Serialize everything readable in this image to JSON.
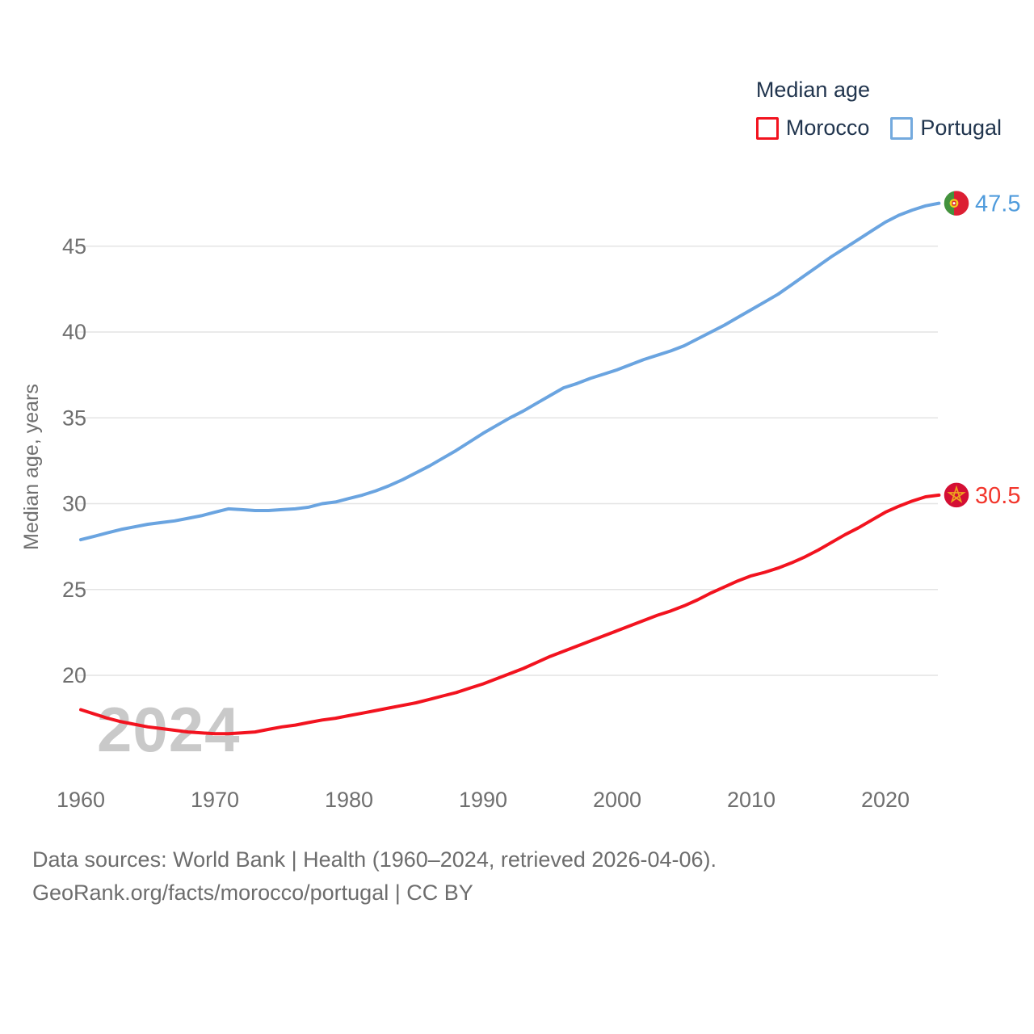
{
  "legend": {
    "title": "Median age",
    "items": [
      {
        "label": "Morocco",
        "color": "#f2131f"
      },
      {
        "label": "Portugal",
        "color": "#74aade"
      }
    ]
  },
  "watermark": "2024",
  "footer": {
    "line1": "Data sources: World Bank | Health (1960–2024, retrieved 2026-04-06).",
    "line2": "GeoRank.org/facts/morocco/portugal | CC BY"
  },
  "colors": {
    "morocco_line": "#f2131f",
    "portugal_line": "#6aa4e0",
    "morocco_value_label": "#f2362c",
    "portugal_value_label": "#4f9bdc",
    "legend_text": "#21354e",
    "axis_text": "#6f6f6f",
    "gridline": "#e4e4e4",
    "watermark": "#c9c9c9",
    "footer_text": "#6d6d6d",
    "morocco_flag_red": "#d40f34",
    "morocco_flag_star": "#efa51e",
    "portugal_flag_green": "#43923d",
    "portugal_flag_red": "#dc1f33",
    "portugal_flag_gold": "#f3cf1c"
  },
  "chart_data": {
    "type": "line",
    "title": "Median age",
    "ylabel": "Median age, years",
    "xlabel": "",
    "grid": "horizontal",
    "legend_position": "top-right",
    "x_ticks": [
      1960,
      1970,
      1980,
      1990,
      2000,
      2010,
      2020
    ],
    "y_ticks": [
      20,
      25,
      30,
      35,
      40,
      45
    ],
    "ylim": [
      16,
      48.5
    ],
    "xlim": [
      1960,
      2024
    ],
    "x": [
      1960,
      1961,
      1962,
      1963,
      1964,
      1965,
      1966,
      1967,
      1968,
      1969,
      1970,
      1971,
      1972,
      1973,
      1974,
      1975,
      1976,
      1977,
      1978,
      1979,
      1980,
      1981,
      1982,
      1983,
      1984,
      1985,
      1986,
      1987,
      1988,
      1989,
      1990,
      1991,
      1992,
      1993,
      1994,
      1995,
      1996,
      1997,
      1998,
      1999,
      2000,
      2001,
      2002,
      2003,
      2004,
      2005,
      2006,
      2007,
      2008,
      2009,
      2010,
      2011,
      2012,
      2013,
      2014,
      2015,
      2016,
      2017,
      2018,
      2019,
      2020,
      2021,
      2022,
      2023,
      2024
    ],
    "series": [
      {
        "name": "Morocco",
        "color": "#f2131f",
        "end_label": "30.5",
        "flag": "morocco",
        "values": [
          18.0,
          17.75,
          17.5,
          17.3,
          17.15,
          17.0,
          16.9,
          16.8,
          16.7,
          16.65,
          16.6,
          16.6,
          16.65,
          16.7,
          16.85,
          17.0,
          17.1,
          17.25,
          17.4,
          17.5,
          17.65,
          17.8,
          17.95,
          18.1,
          18.25,
          18.4,
          18.6,
          18.8,
          19.0,
          19.25,
          19.5,
          19.8,
          20.1,
          20.4,
          20.75,
          21.1,
          21.4,
          21.7,
          22.0,
          22.3,
          22.6,
          22.9,
          23.2,
          23.5,
          23.75,
          24.05,
          24.4,
          24.8,
          25.15,
          25.5,
          25.8,
          26.0,
          26.25,
          26.55,
          26.9,
          27.3,
          27.75,
          28.2,
          28.6,
          29.05,
          29.5,
          29.85,
          30.15,
          30.4,
          30.5
        ]
      },
      {
        "name": "Portugal",
        "color": "#6aa4e0",
        "end_label": "47.5",
        "flag": "portugal",
        "values": [
          27.9,
          28.1,
          28.3,
          28.5,
          28.65,
          28.8,
          28.9,
          29.0,
          29.15,
          29.3,
          29.5,
          29.7,
          29.65,
          29.6,
          29.6,
          29.65,
          29.7,
          29.8,
          30.0,
          30.1,
          30.3,
          30.5,
          30.75,
          31.05,
          31.4,
          31.8,
          32.2,
          32.65,
          33.1,
          33.6,
          34.1,
          34.55,
          35.0,
          35.4,
          35.85,
          36.3,
          36.75,
          37.0,
          37.3,
          37.55,
          37.8,
          38.1,
          38.4,
          38.65,
          38.9,
          39.2,
          39.6,
          40.0,
          40.4,
          40.85,
          41.3,
          41.75,
          42.2,
          42.75,
          43.3,
          43.85,
          44.4,
          44.9,
          45.4,
          45.9,
          46.4,
          46.8,
          47.1,
          47.35,
          47.5
        ]
      }
    ]
  }
}
